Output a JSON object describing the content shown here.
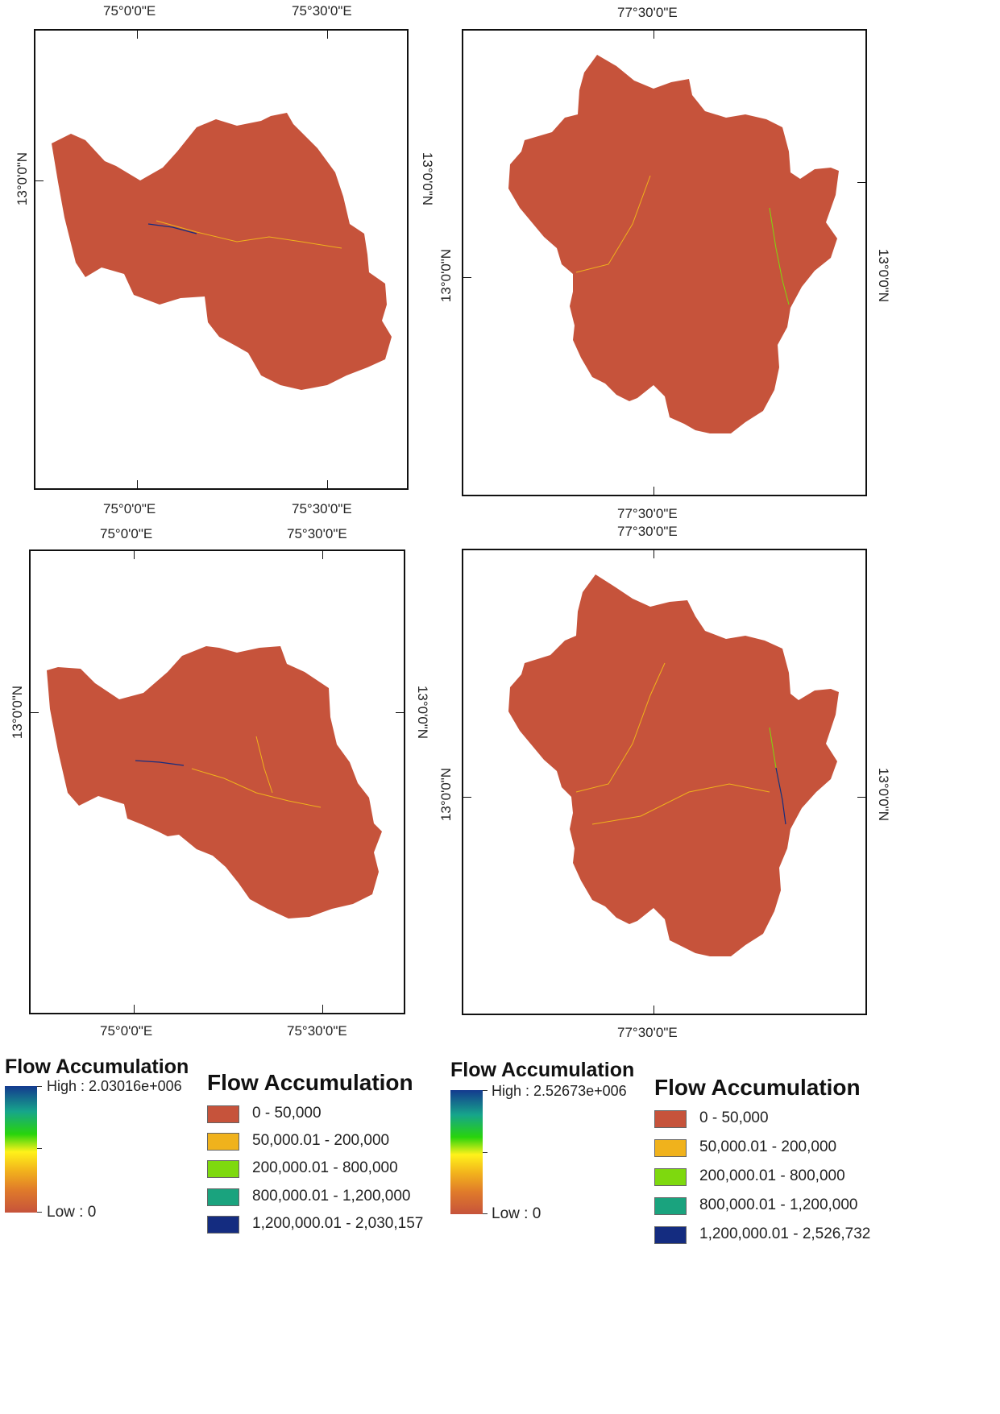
{
  "colors": {
    "basin_fill": "#c6533b",
    "class_1": "#c6533b",
    "class_2": "#f0b21c",
    "class_3": "#7ed90e",
    "class_4": "#1aa37e",
    "class_5": "#142c80"
  },
  "maps": {
    "top_left": {
      "top_lon_labels": [
        "75°0'0\"E",
        "75°30'0\"E"
      ],
      "bottom_lon_labels": [
        "75°0'0\"E",
        "75°30'0\"E"
      ],
      "left_lat_label": "13°0'0\"N",
      "right_lat_label": "13°0'0\"N"
    },
    "top_right": {
      "top_lon_label": "77°30'0\"E",
      "bottom_lon_label": "77°30'0\"E",
      "left_lat_label": "13°0'0\"N",
      "right_lat_label": "13°0'0\"N"
    },
    "bottom_left": {
      "top_lon_labels": [
        "75°0'0\"E",
        "75°30'0\"E"
      ],
      "bottom_lon_labels": [
        "75°0'0\"E",
        "75°30'0\"E"
      ],
      "left_lat_label": "13°0'0\"N",
      "right_lat_label": "13°0'0\"N"
    },
    "bottom_right": {
      "top_lon_label": "77°30'0\"E",
      "bottom_lon_label": "77°30'0\"E",
      "left_lat_label": "13°0'0\"N",
      "right_lat_label": "13°0'0\"N"
    }
  },
  "legends": {
    "left_ramp": {
      "title": "Flow Accumulation",
      "high": "High : 2.03016e+006",
      "low": "Low : 0"
    },
    "left_classes": {
      "title": "Flow Accumulation",
      "items": [
        "0 - 50,000",
        "50,000.01 - 200,000",
        "200,000.01 - 800,000",
        "800,000.01 - 1,200,000",
        "1,200,000.01 - 2,030,157"
      ]
    },
    "right_ramp": {
      "title": "Flow Accumulation",
      "high": "High : 2.52673e+006",
      "low": "Low : 0"
    },
    "right_classes": {
      "title": "Flow Accumulation",
      "items": [
        "0 - 50,000",
        "50,000.01 - 200,000",
        "200,000.01 - 800,000",
        "800,000.01 - 1,200,000",
        "1,200,000.01 - 2,526,732"
      ]
    }
  }
}
